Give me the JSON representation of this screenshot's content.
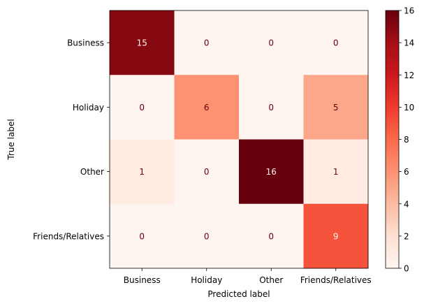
{
  "chart_data": {
    "type": "heatmap",
    "title": "",
    "xlabel": "Predicted label",
    "ylabel": "True label",
    "x_categories": [
      "Business",
      "Holiday",
      "Other",
      "Friends/Relatives"
    ],
    "y_categories": [
      "Business",
      "Holiday",
      "Other",
      "Friends/Relatives"
    ],
    "values": [
      [
        15,
        0,
        0,
        0
      ],
      [
        0,
        6,
        0,
        5
      ],
      [
        1,
        0,
        16,
        1
      ],
      [
        0,
        0,
        0,
        9
      ]
    ],
    "colormap": "Reds",
    "colorbar": {
      "range": [
        0,
        16
      ],
      "ticks": [
        "0",
        "2",
        "4",
        "6",
        "8",
        "10",
        "12",
        "14",
        "16"
      ]
    },
    "colors": {
      "low": "#fff5f0",
      "high": "#67000d",
      "text_on_light": "#67000d",
      "text_on_dark": "#fff5f0"
    }
  }
}
